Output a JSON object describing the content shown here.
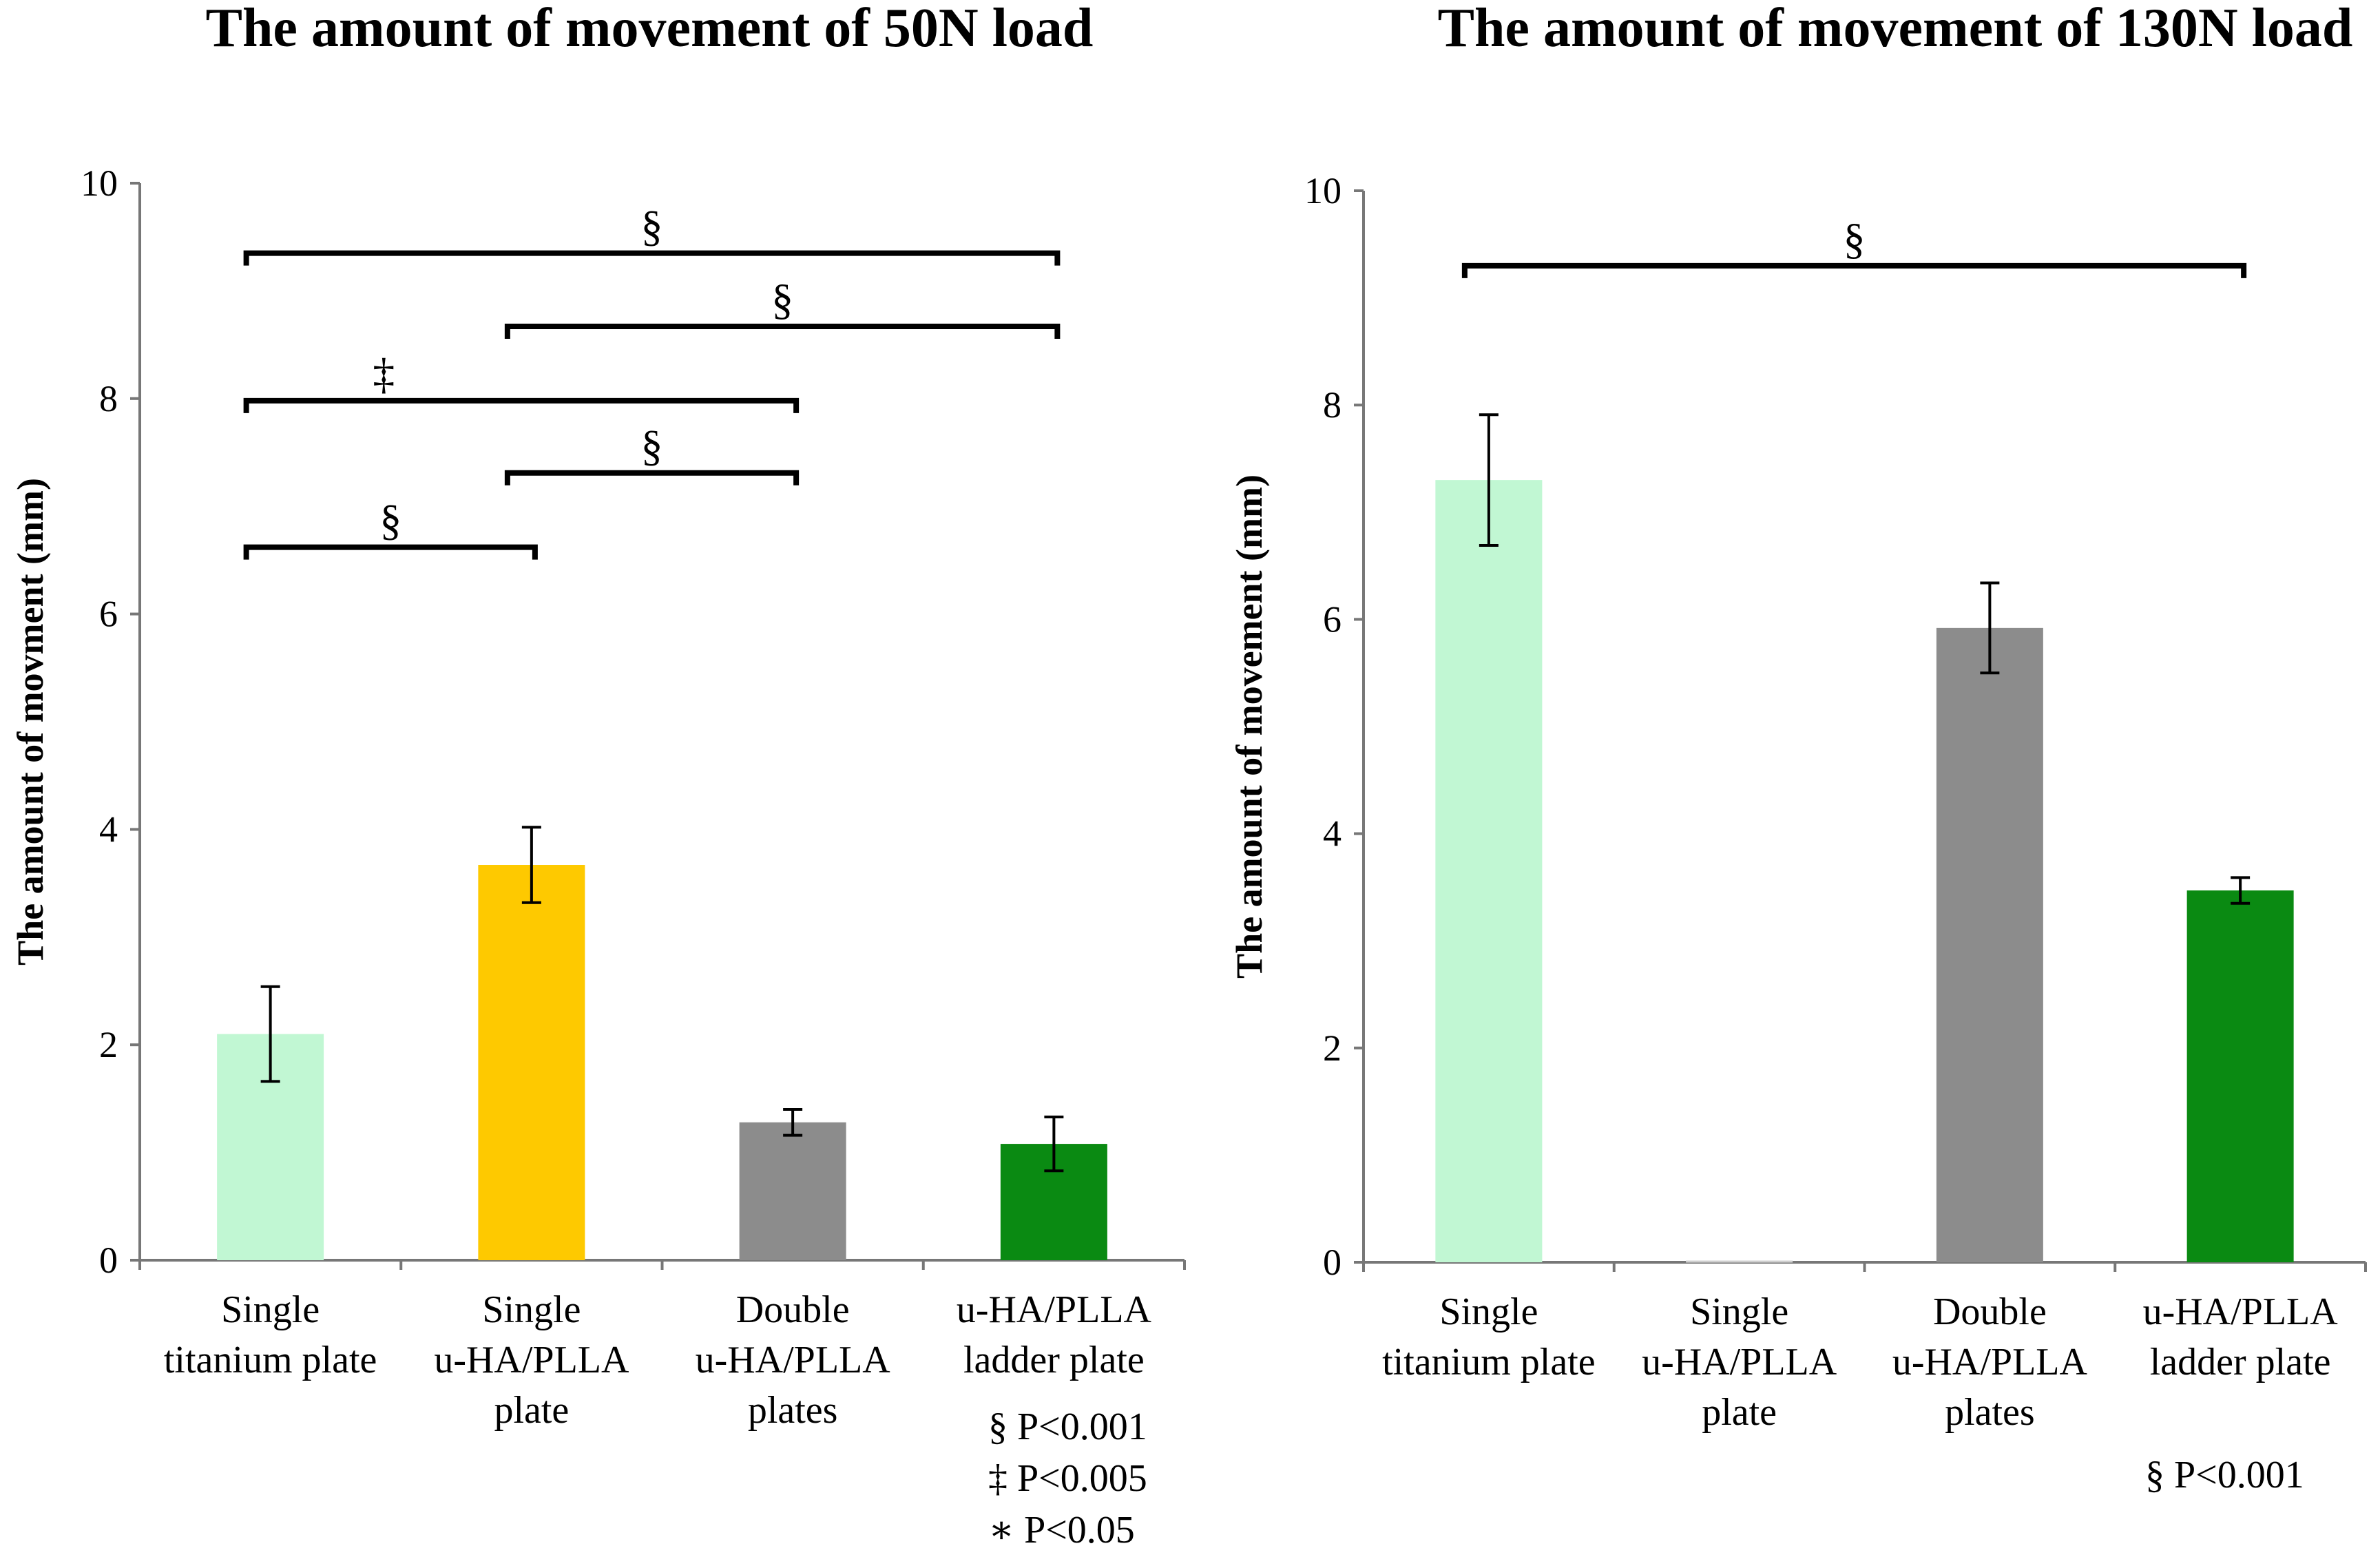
{
  "chart_data": [
    {
      "type": "bar",
      "title": "The amount of movement of 50N load",
      "ylabel": "The amount of movment (mm)",
      "xlabel": "",
      "ylim": [
        0,
        10
      ],
      "yticks": [
        0,
        2,
        4,
        6,
        8,
        10
      ],
      "categories": [
        [
          "Single",
          "titanium plate"
        ],
        [
          "Single",
          "u-HA/PLLA",
          "plate"
        ],
        [
          "Double",
          "u-HA/PLLA",
          "plates"
        ],
        [
          "u-HA/PLLA",
          "ladder plate"
        ]
      ],
      "values": [
        2.1,
        3.67,
        1.28,
        1.08
      ],
      "errors": [
        0.44,
        0.35,
        0.12,
        0.25
      ],
      "colors": [
        "#c1f7d3",
        "#fec900",
        "#8c8c8c",
        "#0a8a12"
      ],
      "significance": [
        {
          "from": 0,
          "to": 3,
          "y": 9.35,
          "symbol": "§"
        },
        {
          "from": 1,
          "to": 3,
          "y": 8.67,
          "symbol": "§"
        },
        {
          "from": 0,
          "to": 2,
          "y": 7.98,
          "symbol": "‡"
        },
        {
          "from": 1,
          "to": 2,
          "y": 7.31,
          "symbol": "§"
        },
        {
          "from": 0,
          "to": 1,
          "y": 6.62,
          "symbol": "§"
        }
      ],
      "legend": [
        "§ P<0.001",
        "‡ P<0.005",
        "∗ P<0.05"
      ]
    },
    {
      "type": "bar",
      "title": "The amount of movement of 130N load",
      "ylabel": "The amount of movement (mm)",
      "xlabel": "",
      "ylim": [
        0,
        10
      ],
      "yticks": [
        0,
        2,
        4,
        6,
        8,
        10
      ],
      "categories": [
        [
          "Single",
          "titanium plate"
        ],
        [
          "Single",
          "u-HA/PLLA",
          "plate"
        ],
        [
          "Double",
          "u-HA/PLLA",
          "plates"
        ],
        [
          "u-HA/PLLA",
          "ladder plate"
        ]
      ],
      "values": [
        7.3,
        0,
        5.92,
        3.47
      ],
      "errors": [
        0.61,
        0,
        0.42,
        0.12
      ],
      "colors": [
        "#c1f7d3",
        "#c1f7d3",
        "#8c8c8c",
        "#0a8a12"
      ],
      "significance": [
        {
          "from": 0,
          "to": 3,
          "y": 9.3,
          "symbol": "§"
        }
      ],
      "legend": [
        "§ P<0.001"
      ]
    }
  ]
}
